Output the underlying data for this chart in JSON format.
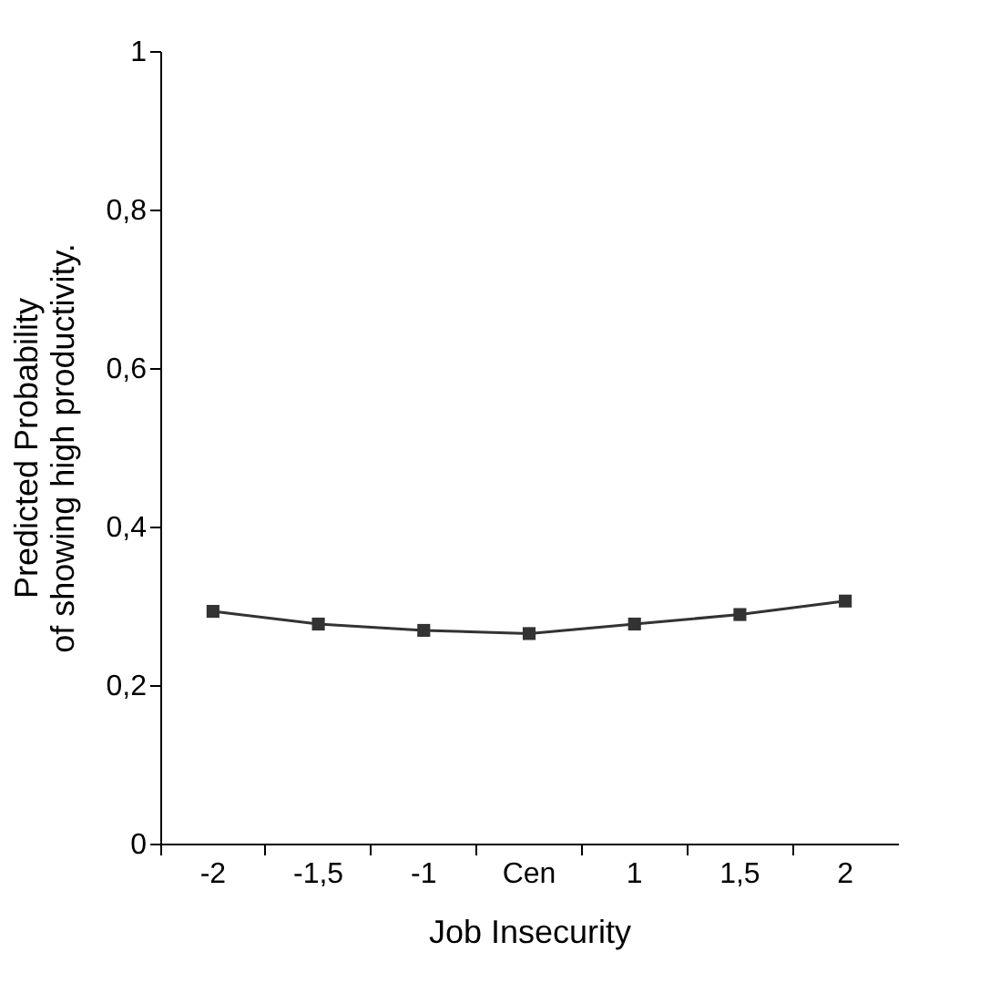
{
  "chart_data": {
    "type": "line",
    "xlabel": "Job Insecurity",
    "ylabel": "Predicted Probability\nof showing high productivity.",
    "categories": [
      "-2",
      "-1,5",
      "-1",
      "Cen",
      "1",
      "1,5",
      "2"
    ],
    "series": [
      {
        "color": "#333333",
        "values": [
          0.293,
          0.277,
          0.269,
          0.265,
          0.277,
          0.289,
          0.306
        ]
      }
    ],
    "ylim": [
      0,
      1
    ],
    "yticks": [
      {
        "value": 0,
        "label": "0"
      },
      {
        "value": 0.2,
        "label": "0,2"
      },
      {
        "value": 0.4,
        "label": "0,4"
      },
      {
        "value": 0.6,
        "label": "0,6"
      },
      {
        "value": 0.8,
        "label": "0,8"
      },
      {
        "value": 1,
        "label": "1"
      }
    ],
    "grid": false,
    "marker": "square",
    "line_style": "solid"
  }
}
